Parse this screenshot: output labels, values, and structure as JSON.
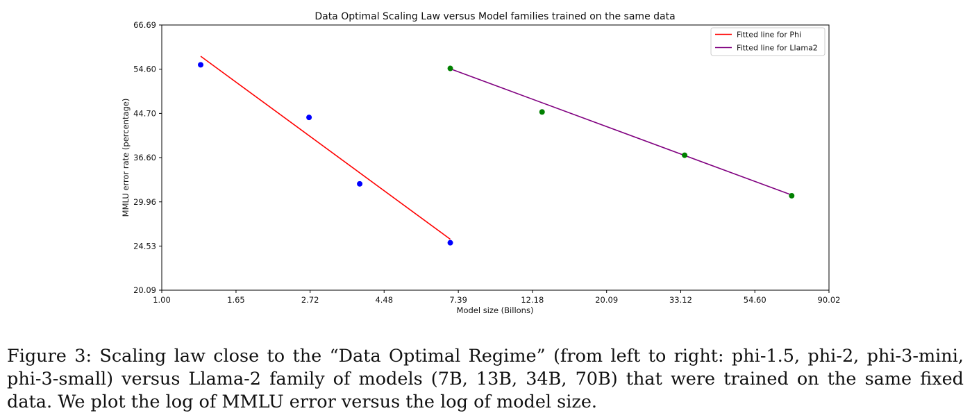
{
  "chart_data": {
    "type": "scatter",
    "title": "Data Optimal Scaling Law versus Model families trained on the same data",
    "xlabel": "Model size (Billons)",
    "ylabel": "MMLU error rate (percentage)",
    "x_scale": "log",
    "y_scale": "log",
    "xlim": [
      1.0,
      90.02
    ],
    "ylim": [
      20.09,
      66.69
    ],
    "x_ticks": [
      1.0,
      1.65,
      2.72,
      4.48,
      7.39,
      12.18,
      20.09,
      33.12,
      54.6,
      90.02
    ],
    "x_tick_labels": [
      "1.00",
      "1.65",
      "2.72",
      "4.48",
      "7.39",
      "12.18",
      "20.09",
      "33.12",
      "54.60",
      "90.02"
    ],
    "y_ticks": [
      20.09,
      24.53,
      29.96,
      36.6,
      44.7,
      54.6,
      66.69
    ],
    "y_tick_labels": [
      "20.09",
      "24.53",
      "29.96",
      "36.60",
      "44.70",
      "54.60",
      "66.69"
    ],
    "grid": false,
    "legend_position": "top-right",
    "series": [
      {
        "name": "Fitted line for Phi",
        "kind": "line",
        "color": "#ff0000",
        "x": [
          1.3,
          7.0
        ],
        "y": [
          57.9,
          25.3
        ]
      },
      {
        "name": "Fitted line for Llama2",
        "kind": "line",
        "color": "#800080",
        "x": [
          7.0,
          70.0
        ],
        "y": [
          54.7,
          30.9
        ]
      },
      {
        "kind": "scatter",
        "color": "#0000ff",
        "x": [
          1.3,
          2.7,
          3.8,
          7.0
        ],
        "y": [
          55.7,
          43.9,
          32.5,
          24.9
        ]
      },
      {
        "kind": "scatter",
        "color": "#008000",
        "x": [
          7.0,
          13.0,
          34.0,
          70.0
        ],
        "y": [
          54.8,
          45.0,
          37.0,
          30.8
        ]
      }
    ]
  },
  "caption": "Figure 3: Scaling law close to the “Data Optimal Regime” (from left to right: phi-1.5, phi-2, phi-3-mini, phi-3-small) versus Llama-2 family of models (7B, 13B, 34B, 70B) that were trained on the same fixed data. We plot the log of MMLU error versus the log of model size."
}
